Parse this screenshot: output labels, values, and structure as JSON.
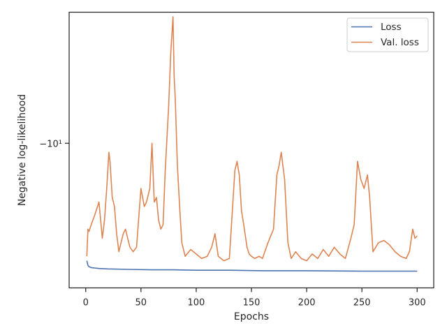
{
  "chart_data": {
    "type": "line",
    "xlabel": "Epochs",
    "ylabel": "Negative log-likelihood",
    "xlim": [
      -15,
      315
    ],
    "y_scale": "symlog",
    "ylim": [
      -6.8,
      -12.9
    ],
    "xticks": [
      0,
      50,
      100,
      150,
      200,
      250,
      300
    ],
    "xtick_labels": [
      "0",
      "50",
      "100",
      "150",
      "200",
      "250",
      "300"
    ],
    "yticks": [
      -10
    ],
    "ytick_labels": [
      "−10¹"
    ],
    "grid": false,
    "legend_position": "top-right",
    "series": [
      {
        "name": "Loss",
        "color": "#4c72b0",
        "x": [
          1,
          2,
          3,
          5,
          8,
          12,
          20,
          40,
          60,
          80,
          100,
          130,
          160,
          200,
          250,
          280,
          300
        ],
        "y": [
          -7.4,
          -7.3,
          -7.27,
          -7.25,
          -7.24,
          -7.23,
          -7.22,
          -7.21,
          -7.2,
          -7.2,
          -7.19,
          -7.19,
          -7.18,
          -7.18,
          -7.17,
          -7.17,
          -7.17
        ]
      },
      {
        "name": "Val. loss",
        "color": "#dd8452",
        "x": [
          1,
          2,
          3,
          5,
          8,
          12,
          15,
          17,
          19,
          21,
          22,
          24,
          26,
          28,
          30,
          32,
          34,
          36,
          38,
          40,
          43,
          46,
          50,
          53,
          55,
          58,
          60,
          62,
          64,
          66,
          68,
          70,
          72,
          75,
          77,
          79,
          80,
          81,
          83,
          85,
          87,
          90,
          95,
          100,
          105,
          110,
          114,
          117,
          120,
          125,
          130,
          135,
          137,
          139,
          141,
          143,
          146,
          148,
          150,
          153,
          157,
          160,
          165,
          170,
          173,
          175,
          177,
          180,
          183,
          186,
          190,
          195,
          200,
          205,
          210,
          215,
          220,
          225,
          230,
          235,
          240,
          243,
          246,
          249,
          252,
          255,
          257,
          260,
          265,
          270,
          275,
          280,
          285,
          290,
          293,
          296,
          298,
          300
        ],
        "y": [
          -7.5,
          -8.1,
          -8.05,
          -8.2,
          -8.4,
          -8.7,
          -7.9,
          -8.3,
          -9.0,
          -9.8,
          -9.6,
          -8.8,
          -8.6,
          -8.0,
          -7.6,
          -7.8,
          -8.0,
          -8.1,
          -7.9,
          -7.7,
          -7.6,
          -7.7,
          -9.0,
          -8.6,
          -8.7,
          -9.0,
          -10.0,
          -8.7,
          -8.8,
          -8.3,
          -8.1,
          -8.2,
          -9.4,
          -10.8,
          -12.0,
          -12.8,
          -11.5,
          -11.0,
          -9.5,
          -8.6,
          -7.8,
          -7.5,
          -7.65,
          -7.55,
          -7.45,
          -7.5,
          -7.7,
          -8.0,
          -7.5,
          -7.4,
          -7.45,
          -9.4,
          -9.6,
          -9.3,
          -8.5,
          -8.2,
          -7.7,
          -7.55,
          -7.5,
          -7.45,
          -7.5,
          -7.45,
          -7.8,
          -8.1,
          -9.3,
          -9.5,
          -9.8,
          -9.2,
          -7.8,
          -7.45,
          -7.6,
          -7.45,
          -7.4,
          -7.55,
          -7.45,
          -7.65,
          -7.5,
          -7.7,
          -7.55,
          -7.45,
          -7.9,
          -8.2,
          -9.6,
          -9.2,
          -9.0,
          -9.3,
          -8.8,
          -7.6,
          -7.8,
          -7.85,
          -7.75,
          -7.6,
          -7.5,
          -7.45,
          -7.6,
          -8.1,
          -7.9,
          -7.95
        ]
      }
    ]
  }
}
